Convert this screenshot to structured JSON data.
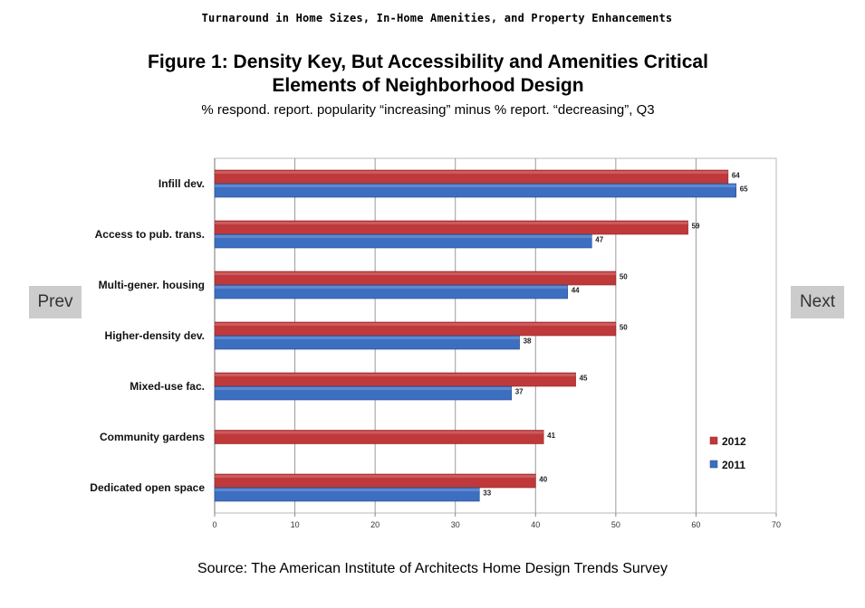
{
  "header": {
    "top_title": "Turnaround in Home Sizes, In-Home Amenities, and Property Enhancements",
    "figure_title_line1": "Figure 1: Density Key, But Accessibility and Amenities Critical",
    "figure_title_line2": "Elements of Neighborhood Design",
    "subtitle": "% respond. report. popularity “increasing” minus % report. “decreasing”, Q3"
  },
  "nav": {
    "prev_label": "Prev",
    "next_label": "Next"
  },
  "footer": {
    "source": "Source: The American Institute of Architects Home Design Trends Survey"
  },
  "colors": {
    "2012": "#c0393a",
    "2011": "#3d6fc1"
  },
  "chart_data": {
    "type": "bar",
    "orientation": "horizontal",
    "title": "Figure 1: Density Key, But Accessibility and Amenities Critical Elements of Neighborhood Design",
    "subtitle": "% respond. report. popularity “increasing” minus % report. “decreasing”, Q3",
    "categories": [
      "Infill dev.",
      "Access to pub. trans.",
      "Multi-gener. housing",
      "Higher-density dev.",
      "Mixed-use fac.",
      "Community gardens",
      "Dedicated open space"
    ],
    "series": [
      {
        "name": "2012",
        "values": [
          64,
          59,
          50,
          50,
          45,
          41,
          40
        ]
      },
      {
        "name": "2011",
        "values": [
          65,
          47,
          44,
          38,
          37,
          null,
          33
        ]
      }
    ],
    "xlim": [
      0,
      70
    ],
    "xticks": [
      0,
      10,
      20,
      30,
      40,
      50,
      60,
      70
    ],
    "grid": true,
    "legend": "bottom-right"
  }
}
